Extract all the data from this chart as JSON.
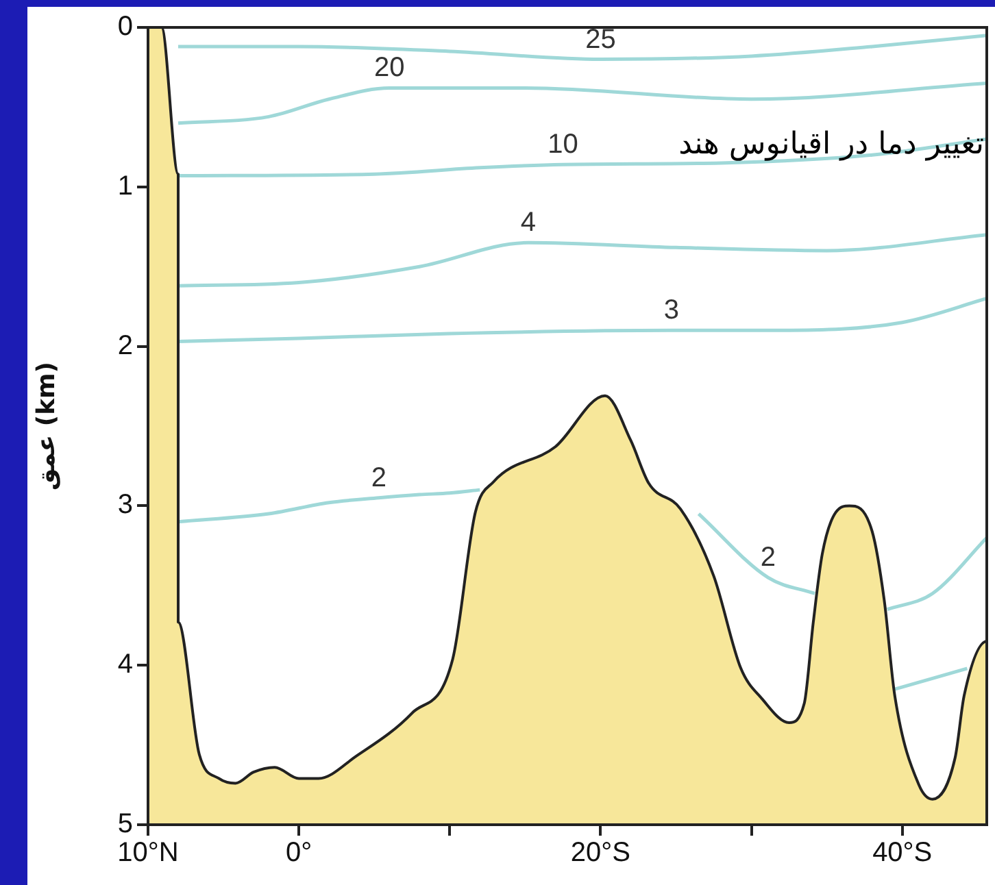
{
  "chart_data": {
    "type": "line",
    "title": "تغییر دما در اقیانوس هند",
    "ylabel": "عمق (km)",
    "marker": "none",
    "xlim": [
      -10,
      45.6
    ],
    "xticks": [
      {
        "value": -10,
        "label": "10°N"
      },
      {
        "value": 0,
        "label": "0°"
      },
      {
        "value": 10,
        "label": null
      },
      {
        "value": 20,
        "label": "20°S"
      },
      {
        "value": 30,
        "label": null
      },
      {
        "value": 40,
        "label": "40°S"
      }
    ],
    "ylim": [
      5,
      0
    ],
    "yticks": [
      0,
      1,
      2,
      3,
      4,
      5
    ],
    "series": [
      {
        "name": "25",
        "type": "line",
        "color": "#9fd8d8",
        "x": [
          -8,
          0,
          10,
          20,
          30,
          38,
          45.6
        ],
        "values": [
          0.12,
          0.12,
          0.15,
          0.2,
          0.18,
          0.12,
          0.05
        ]
      },
      {
        "name": "20",
        "type": "line",
        "color": "#9fd8d8",
        "x": [
          -8,
          -2,
          2,
          6,
          15,
          30,
          45.6
        ],
        "values": [
          0.6,
          0.56,
          0.45,
          0.38,
          0.38,
          0.45,
          0.35
        ]
      },
      {
        "name": "10",
        "type": "line",
        "color": "#9fd8d8",
        "x": [
          -8,
          5,
          12,
          17.5,
          28,
          38,
          45.6
        ],
        "values": [
          0.93,
          0.92,
          0.88,
          0.86,
          0.85,
          0.8,
          0.7
        ]
      },
      {
        "name": "4",
        "type": "line",
        "color": "#9fd8d8",
        "x": [
          -8,
          0,
          8,
          15.2,
          25,
          35,
          45.6
        ],
        "values": [
          1.62,
          1.6,
          1.5,
          1.35,
          1.38,
          1.4,
          1.3
        ]
      },
      {
        "name": "3",
        "type": "line",
        "color": "#9fd8d8",
        "x": [
          -8,
          0,
          10,
          24.7,
          32,
          40,
          45.6
        ],
        "values": [
          1.97,
          1.95,
          1.92,
          1.9,
          1.9,
          1.85,
          1.7
        ]
      },
      {
        "name": "2",
        "type": "line",
        "color": "#9fd8d8",
        "x": [
          -8,
          -2,
          2,
          5.3,
          8,
          10,
          12
        ],
        "values": [
          3.1,
          3.05,
          2.98,
          2.95,
          2.93,
          2.92,
          2.9
        ]
      },
      {
        "name": "2",
        "type": "line",
        "color": "#9fd8d8",
        "x": [
          26.5,
          31.1,
          34.2
        ],
        "values": [
          3.05,
          3.45,
          3.55
        ]
      },
      {
        "type": "line",
        "color": "#9fd8d8",
        "x": [
          39,
          42,
          45.6
        ],
        "values": [
          3.65,
          3.55,
          3.2
        ]
      },
      {
        "type": "line",
        "color": "#9fd8d8",
        "x": [
          39.5,
          44.3
        ],
        "values": [
          4.15,
          4.02
        ]
      },
      {
        "type": "area",
        "color": "#f7e79a",
        "x": [
          -10,
          -10,
          -9.1,
          -8,
          -8,
          -8,
          -6.6,
          -5.3,
          -4.2,
          -3,
          -1.6,
          0,
          1.3,
          3.8,
          7.5,
          10.2,
          11.7,
          12.9,
          17,
          20.3,
          22,
          23.2,
          25.3,
          27.5,
          29.3,
          30.7,
          32.5,
          33.5,
          34.1,
          34.7,
          35.6,
          36.5,
          38,
          38.8,
          39.5,
          41.1,
          42,
          43.5,
          44.1,
          45.6,
          45.6
        ],
        "values": [
          5,
          0,
          0,
          0.92,
          2.76,
          3.73,
          4.56,
          4.71,
          4.74,
          4.67,
          4.64,
          4.71,
          4.71,
          4.57,
          4.3,
          3.96,
          3.04,
          2.85,
          2.63,
          2.31,
          2.59,
          2.86,
          3.02,
          3.44,
          4.02,
          4.21,
          4.36,
          4.24,
          3.73,
          3.3,
          3.04,
          3,
          3.16,
          3.59,
          4.19,
          4.75,
          4.84,
          4.58,
          4.19,
          3.85,
          5
        ]
      }
    ]
  }
}
